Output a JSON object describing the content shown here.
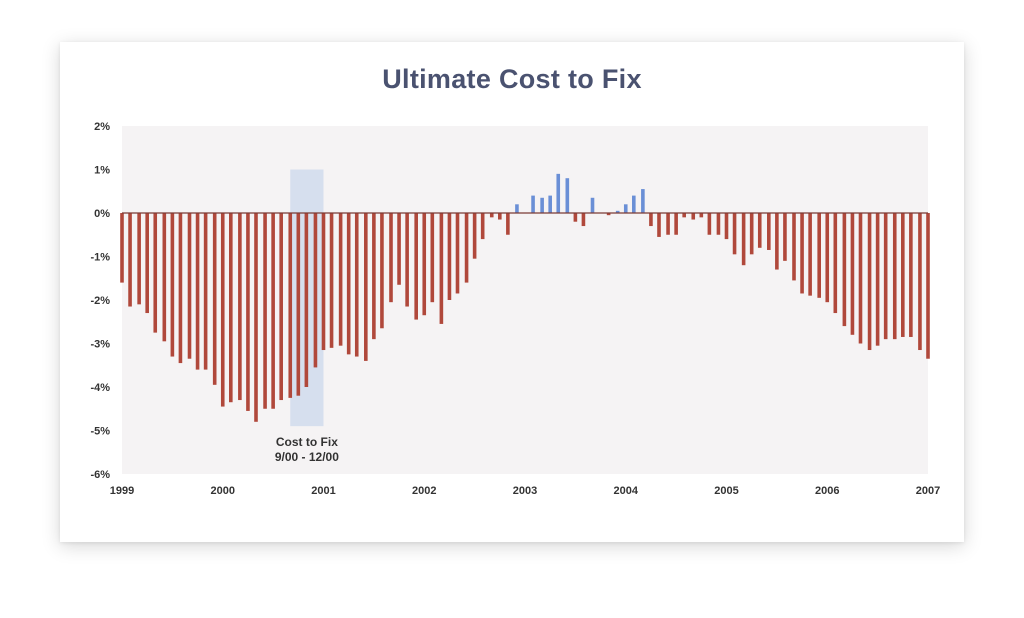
{
  "chart_data": {
    "type": "bar",
    "title": "Ultimate Cost to Fix",
    "xlabel": "",
    "ylabel": "",
    "x_range": [
      1999,
      2007
    ],
    "ylim": [
      -6,
      2
    ],
    "y_ticks": [
      2,
      1,
      0,
      -1,
      -2,
      -3,
      -4,
      -5,
      -6
    ],
    "y_tick_labels": [
      "2%",
      "1%",
      "0%",
      "-1%",
      "-2%",
      "-3%",
      "-4%",
      "-5%",
      "-6%"
    ],
    "x_ticks": [
      1999,
      2000,
      2001,
      2002,
      2003,
      2004,
      2005,
      2006,
      2007
    ],
    "x_tick_labels": [
      "1999",
      "2000",
      "2001",
      "2002",
      "2003",
      "2004",
      "2005",
      "2006",
      "2007"
    ],
    "positive_color": "#6a8fd6",
    "negative_color": "#b0483b",
    "highlight": {
      "start": 2000.67,
      "end": 2001.0,
      "y_top": 1.0,
      "y_bottom": -4.9,
      "label_line1": "Cost to Fix",
      "label_line2": "9/00 - 12/00",
      "color": "#d6dfee"
    },
    "x": [
      1999.0,
      1999.08,
      1999.17,
      1999.25,
      1999.33,
      1999.42,
      1999.5,
      1999.58,
      1999.67,
      1999.75,
      1999.83,
      1999.92,
      2000.0,
      2000.08,
      2000.17,
      2000.25,
      2000.33,
      2000.42,
      2000.5,
      2000.58,
      2000.67,
      2000.75,
      2000.83,
      2000.92,
      2001.0,
      2001.08,
      2001.17,
      2001.25,
      2001.33,
      2001.42,
      2001.5,
      2001.58,
      2001.67,
      2001.75,
      2001.83,
      2001.92,
      2002.0,
      2002.08,
      2002.17,
      2002.25,
      2002.33,
      2002.42,
      2002.5,
      2002.58,
      2002.67,
      2002.75,
      2002.83,
      2002.92,
      2003.0,
      2003.08,
      2003.17,
      2003.25,
      2003.33,
      2003.42,
      2003.5,
      2003.58,
      2003.67,
      2003.75,
      2003.83,
      2003.92,
      2004.0,
      2004.08,
      2004.17,
      2004.25,
      2004.33,
      2004.42,
      2004.5,
      2004.58,
      2004.67,
      2004.75,
      2004.83,
      2004.92,
      2005.0,
      2005.08,
      2005.17,
      2005.25,
      2005.33,
      2005.42,
      2005.5,
      2005.58,
      2005.67,
      2005.75,
      2005.83,
      2005.92,
      2006.0,
      2006.08,
      2006.17,
      2006.25,
      2006.33,
      2006.42,
      2006.5,
      2006.58,
      2006.67,
      2006.75,
      2006.83,
      2006.92,
      2007.0
    ],
    "values": [
      -1.6,
      -2.15,
      -2.1,
      -2.3,
      -2.75,
      -2.95,
      -3.3,
      -3.45,
      -3.35,
      -3.6,
      -3.6,
      -3.95,
      -4.45,
      -4.35,
      -4.3,
      -4.55,
      -4.8,
      -4.5,
      -4.5,
      -4.3,
      -4.25,
      -4.2,
      -4.0,
      -3.55,
      -3.15,
      -3.1,
      -3.05,
      -3.25,
      -3.3,
      -3.4,
      -2.9,
      -2.65,
      -2.05,
      -1.65,
      -2.15,
      -2.45,
      -2.35,
      -2.05,
      -2.55,
      -2.0,
      -1.85,
      -1.6,
      -1.05,
      -0.6,
      -0.1,
      -0.15,
      -0.5,
      0.2,
      0.0,
      0.4,
      0.35,
      0.4,
      0.9,
      0.8,
      -0.2,
      -0.3,
      0.35,
      0.0,
      -0.05,
      0.05,
      0.2,
      0.4,
      0.55,
      -0.3,
      -0.55,
      -0.5,
      -0.5,
      -0.1,
      -0.15,
      -0.1,
      -0.5,
      -0.5,
      -0.6,
      -0.95,
      -1.2,
      -0.95,
      -0.8,
      -0.85,
      -1.3,
      -1.1,
      -1.55,
      -1.85,
      -1.9,
      -1.95,
      -2.05,
      -2.3,
      -2.6,
      -2.8,
      -3.0,
      -3.15,
      -3.05,
      -2.9,
      -2.9,
      -2.85,
      -2.85,
      -3.15,
      -3.35
    ]
  }
}
